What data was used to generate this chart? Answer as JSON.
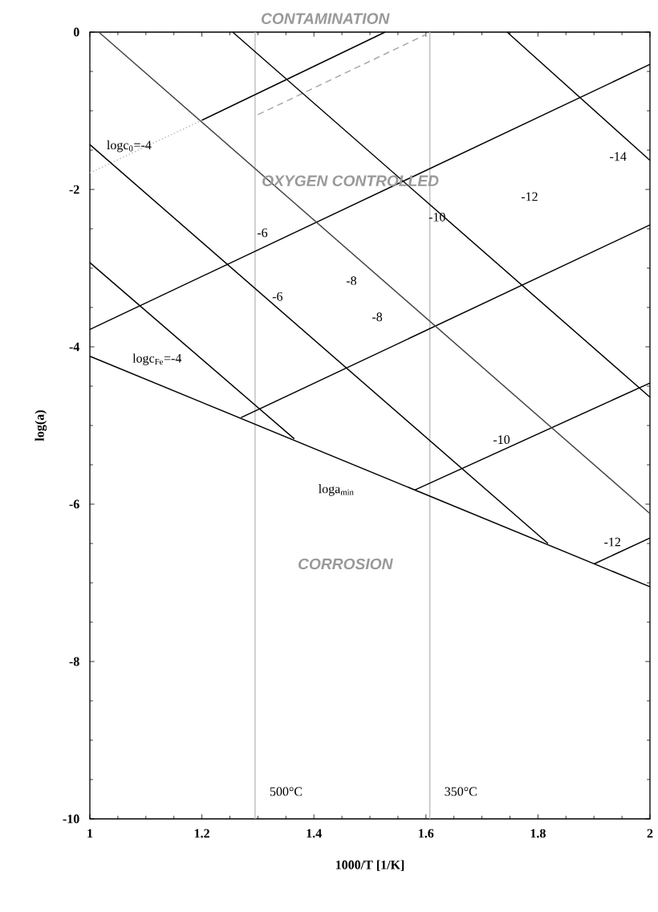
{
  "chart_data": {
    "type": "line",
    "xlabel": "1000/T [1/K]",
    "ylabel": "log(a)",
    "xlim": [
      1,
      2
    ],
    "ylim": [
      -10,
      0
    ],
    "xticks": [
      1,
      1.2,
      1.4,
      1.6,
      1.8,
      2
    ],
    "yticks": [
      0,
      -2,
      -4,
      -6,
      -8,
      -10
    ],
    "line_style": "solid",
    "marker": "none",
    "grid": false,
    "series": [
      {
        "color": "#000000",
        "x": [
          1,
          2
        ],
        "values": [
          -4.12,
          -7.05
        ]
      },
      {
        "color": "#bbbbbb",
        "line_style": "dotted",
        "x": [
          1,
          1.2
        ],
        "values": [
          -1.79,
          -1.12
        ]
      },
      {
        "color": "#000000",
        "x": [
          1.2,
          1.527
        ],
        "values": [
          -1.12,
          0
        ]
      },
      {
        "color": "#aaaaaa",
        "line_style": "dashed",
        "x": [
          1.3,
          1.6
        ],
        "values": [
          -1.05,
          -0.03
        ]
      },
      {
        "color": "#000000",
        "x": [
          1,
          2
        ],
        "values": [
          -3.78,
          -0.41
        ]
      },
      {
        "color": "#000000",
        "x": [
          1.27,
          2
        ],
        "values": [
          -4.9,
          -2.45
        ]
      },
      {
        "color": "#000000",
        "x": [
          1.58,
          2
        ],
        "values": [
          -5.82,
          -4.46
        ]
      },
      {
        "color": "#000000",
        "x": [
          1.9,
          2
        ],
        "values": [
          -6.76,
          -6.43
        ]
      },
      {
        "color": "#444444",
        "x": [
          1.016,
          2
        ],
        "values": [
          0,
          -6.12
        ]
      },
      {
        "color": "#000000",
        "x": [
          1.255,
          2
        ],
        "values": [
          0,
          -4.64
        ]
      },
      {
        "color": "#000000",
        "x": [
          1.745,
          2
        ],
        "values": [
          0,
          -1.63
        ]
      },
      {
        "color": "#000000",
        "x": [
          1,
          1.818
        ],
        "values": [
          -1.43,
          -6.5
        ]
      },
      {
        "color": "#000000",
        "x": [
          1,
          1.365
        ],
        "values": [
          -2.93,
          -5.17
        ]
      }
    ],
    "ref_lines": [
      {
        "axis": "x",
        "value": 1.295,
        "label": "500°C",
        "color": "#bbbbbb"
      },
      {
        "axis": "x",
        "value": 1.607,
        "label": "350°C",
        "color": "#bbbbbb"
      }
    ],
    "annotations": [
      "CONTAMINATION",
      "OXYGEN CONTROLLED",
      "CORROSION",
      "logc$_{0}$=-4",
      "logc$_{Fe}$=-4",
      "loga$_{min}$",
      "-6",
      "-6",
      "-8",
      "-8",
      "-10",
      "-10",
      "-12",
      "-12",
      "-14"
    ]
  }
}
